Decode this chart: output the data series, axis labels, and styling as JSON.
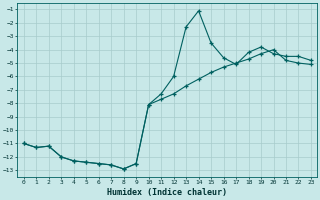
{
  "xlabel": "Humidex (Indice chaleur)",
  "background_color": "#c8e8e8",
  "grid_color": "#a8cccc",
  "line_color": "#006060",
  "xlim": [
    -0.5,
    23.5
  ],
  "ylim": [
    -13.5,
    -0.5
  ],
  "yticks": [
    -13,
    -12,
    -11,
    -10,
    -9,
    -8,
    -7,
    -6,
    -5,
    -4,
    -3,
    -2,
    -1
  ],
  "xticks": [
    0,
    1,
    2,
    3,
    4,
    5,
    6,
    7,
    8,
    9,
    10,
    11,
    12,
    13,
    14,
    15,
    16,
    17,
    18,
    19,
    20,
    21,
    22,
    23
  ],
  "line1_x": [
    0,
    1,
    2,
    3,
    4,
    5,
    6,
    7,
    8,
    9,
    10,
    11,
    12,
    13,
    14,
    15,
    16,
    17,
    18,
    19,
    20,
    21,
    22,
    23
  ],
  "line1_y": [
    -11.0,
    -11.3,
    -11.2,
    -12.0,
    -12.3,
    -12.4,
    -12.5,
    -12.6,
    -12.9,
    -12.5,
    -8.1,
    -7.3,
    -6.0,
    -2.3,
    -1.1,
    -3.5,
    -4.6,
    -5.1,
    -4.2,
    -3.8,
    -4.3,
    -4.5,
    -4.5,
    -4.8
  ],
  "line2_x": [
    0,
    1,
    2,
    3,
    4,
    5,
    6,
    7,
    8,
    9,
    10,
    11,
    12,
    13,
    14,
    15,
    16,
    17,
    18,
    19,
    20,
    21,
    22,
    23
  ],
  "line2_y": [
    -11.0,
    -11.3,
    -11.2,
    -12.0,
    -12.3,
    -12.4,
    -12.5,
    -12.6,
    -12.9,
    -12.5,
    -8.1,
    -7.7,
    -7.3,
    -6.7,
    -6.2,
    -5.7,
    -5.3,
    -5.0,
    -4.7,
    -4.3,
    -4.0,
    -4.8,
    -5.0,
    -5.1
  ]
}
